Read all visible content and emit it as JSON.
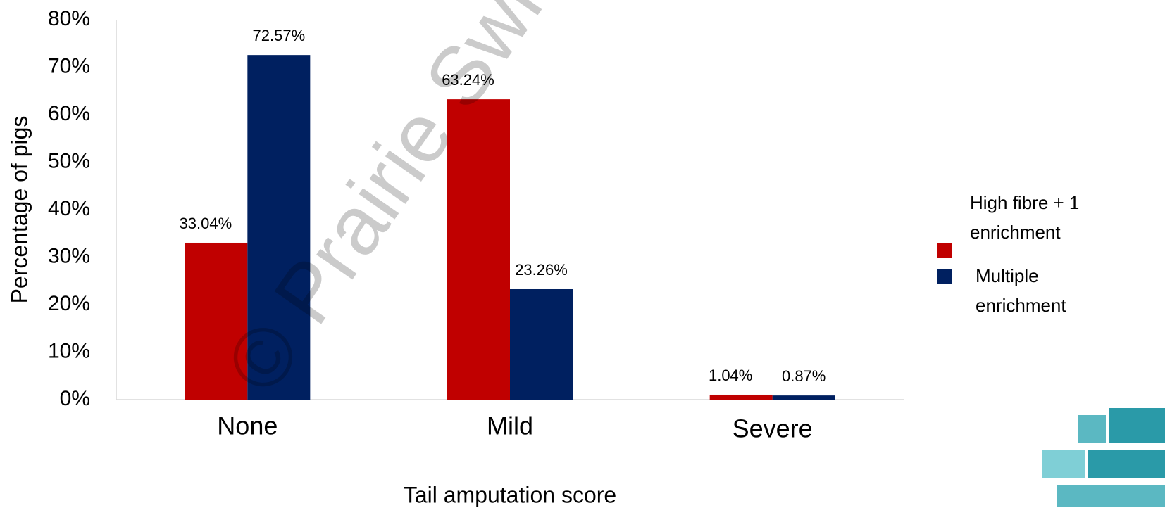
{
  "chart_data": {
    "type": "bar",
    "watermark": "© Prairie Swine",
    "xlabel": "Tail amputation score",
    "ylabel": "Percentage of pigs",
    "categories": [
      "None",
      "Mild",
      "Severe"
    ],
    "series": [
      {
        "name": "High fibre + 1 enrichment",
        "color": "#c00000",
        "values": [
          33.04,
          63.24,
          1.04
        ],
        "value_labels": [
          "33.04%",
          "63.24%",
          "1.04%"
        ]
      },
      {
        "name": "Multiple enrichment",
        "color": "#002060",
        "values": [
          72.57,
          23.26,
          0.87
        ],
        "value_labels": [
          "72.57%",
          "23.26%",
          "0.87%"
        ]
      }
    ],
    "ylim": [
      0,
      80
    ],
    "yticks": [
      {
        "value": 0,
        "label": "0%"
      },
      {
        "value": 10,
        "label": "10%"
      },
      {
        "value": 20,
        "label": "20%"
      },
      {
        "value": 30,
        "label": "30%"
      },
      {
        "value": 40,
        "label": "40%"
      },
      {
        "value": 50,
        "label": "50%"
      },
      {
        "value": 60,
        "label": "60%"
      },
      {
        "value": 70,
        "label": "70%"
      },
      {
        "value": 80,
        "label": "80%"
      }
    ],
    "grid": false,
    "legend": "right"
  }
}
